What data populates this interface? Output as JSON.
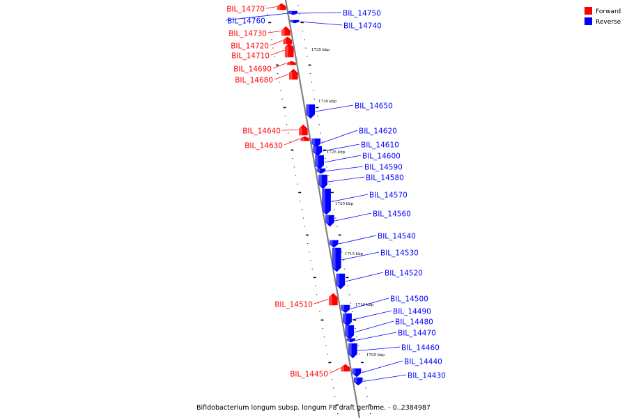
{
  "title": "Bifidobacterium longum subsp. longum F8 draft genome. - 0..2384987",
  "legend": [
    {
      "label": "Forward",
      "color": "#ff0000"
    },
    {
      "label": "Reverse",
      "color": "#0000ff"
    }
  ],
  "colors": {
    "forward": "#ff0000",
    "reverse": "#0000ff",
    "backbone": "#808080"
  },
  "kbp_marks": [
    "1735 kbp",
    "1730 kbp",
    "1725 kbp",
    "1720 kbp",
    "1715 kbp",
    "1710 kbp",
    "1705 kbp"
  ],
  "genes": [
    {
      "name": "BIL_14770",
      "strand": "forward"
    },
    {
      "name": "BIL_14760",
      "strand": "reverse"
    },
    {
      "name": "BIL_14750",
      "strand": "reverse"
    },
    {
      "name": "BIL_14740",
      "strand": "reverse"
    },
    {
      "name": "BIL_14730",
      "strand": "forward"
    },
    {
      "name": "BIL_14720",
      "strand": "forward"
    },
    {
      "name": "BIL_14710",
      "strand": "forward"
    },
    {
      "name": "BIL_14690",
      "strand": "forward"
    },
    {
      "name": "BIL_14680",
      "strand": "forward"
    },
    {
      "name": "BIL_14650",
      "strand": "reverse"
    },
    {
      "name": "BIL_14640",
      "strand": "forward"
    },
    {
      "name": "BIL_14630",
      "strand": "forward"
    },
    {
      "name": "BIL_14620",
      "strand": "reverse"
    },
    {
      "name": "BIL_14610",
      "strand": "reverse"
    },
    {
      "name": "BIL_14600",
      "strand": "reverse"
    },
    {
      "name": "BIL_14590",
      "strand": "reverse"
    },
    {
      "name": "BIL_14580",
      "strand": "reverse"
    },
    {
      "name": "BIL_14570",
      "strand": "reverse"
    },
    {
      "name": "BIL_14560",
      "strand": "reverse"
    },
    {
      "name": "BIL_14540",
      "strand": "reverse"
    },
    {
      "name": "BIL_14530",
      "strand": "reverse"
    },
    {
      "name": "BIL_14520",
      "strand": "reverse"
    },
    {
      "name": "BIL_14510",
      "strand": "forward"
    },
    {
      "name": "BIL_14500",
      "strand": "reverse"
    },
    {
      "name": "BIL_14490",
      "strand": "reverse"
    },
    {
      "name": "BIL_14480",
      "strand": "reverse"
    },
    {
      "name": "BIL_14470",
      "strand": "reverse"
    },
    {
      "name": "BIL_14460",
      "strand": "reverse"
    },
    {
      "name": "BIL_14450",
      "strand": "forward"
    },
    {
      "name": "BIL_14440",
      "strand": "reverse"
    },
    {
      "name": "BIL_14430",
      "strand": "reverse"
    }
  ]
}
